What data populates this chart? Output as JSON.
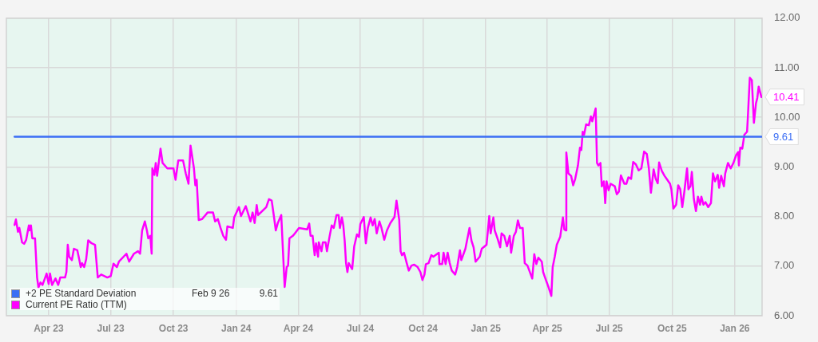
{
  "chart_data": {
    "type": "line",
    "xlim": [
      "2023-01-29",
      "2026-02-10"
    ],
    "xticks": [
      {
        "value": "2023-04-01",
        "label": "Apr 23"
      },
      {
        "value": "2023-07-01",
        "label": "Jul 23"
      },
      {
        "value": "2023-10-01",
        "label": "Oct 23"
      },
      {
        "value": "2024-01-01",
        "label": "Jan 24"
      },
      {
        "value": "2024-04-01",
        "label": "Apr 24"
      },
      {
        "value": "2024-07-01",
        "label": "Jul 24"
      },
      {
        "value": "2024-10-01",
        "label": "Oct 24"
      },
      {
        "value": "2025-01-01",
        "label": "Jan 25"
      },
      {
        "value": "2025-04-01",
        "label": "Apr 25"
      },
      {
        "value": "2025-07-01",
        "label": "Jul 25"
      },
      {
        "value": "2025-10-01",
        "label": "Oct 25"
      },
      {
        "value": "2026-01-01",
        "label": "Jan 26"
      }
    ],
    "ylim": [
      6,
      12
    ],
    "yticks": [
      {
        "value": 6,
        "label": "6.00"
      },
      {
        "value": 7,
        "label": "7.00"
      },
      {
        "value": 8,
        "label": "8.00"
      },
      {
        "value": 9,
        "label": "9.00"
      },
      {
        "value": 10,
        "label": "10.00"
      },
      {
        "value": 11,
        "label": "11.00"
      },
      {
        "value": 12,
        "label": "12.00"
      }
    ],
    "grid": true,
    "legend": "bottom left",
    "annotations": [
      "Feb 9 26",
      "9.61",
      {
        "text": "9.61",
        "x": "2026-02-09",
        "y": 9.61
      },
      {
        "text": "10.41",
        "x": "2026-02-09",
        "y": 10.41
      }
    ],
    "series": [
      {
        "name": "+2 PE Standard Deviation",
        "color": "#3b6ef5",
        "x": [
          "2023-02-10",
          "2026-02-09"
        ],
        "values": [
          9.61,
          9.61
        ]
      },
      {
        "name": "Current PE Ratio (TTM)",
        "color": "#ff00ff",
        "x": [
          "2023-02-10",
          "2023-02-12",
          "2023-02-15",
          "2023-02-17",
          "2023-02-21",
          "2023-02-24",
          "2023-02-27",
          "2023-03-03",
          "2023-03-04",
          "2023-03-06",
          "2023-03-08",
          "2023-03-12",
          "2023-03-15",
          "2023-03-17",
          "2023-03-20",
          "2023-03-23",
          "2023-03-29",
          "2023-04-01",
          "2023-04-03",
          "2023-04-06",
          "2023-04-11",
          "2023-04-15",
          "2023-04-18",
          "2023-04-25",
          "2023-04-27",
          "2023-04-29",
          "2023-05-01",
          "2023-05-05",
          "2023-05-08",
          "2023-05-13",
          "2023-05-16",
          "2023-05-18",
          "2023-05-20",
          "2023-05-23",
          "2023-05-26",
          "2023-05-29",
          "2023-06-03",
          "2023-06-08",
          "2023-06-12",
          "2023-06-17",
          "2023-06-26",
          "2023-07-01",
          "2023-07-05",
          "2023-07-10",
          "2023-07-13",
          "2023-07-24",
          "2023-07-28",
          "2023-08-04",
          "2023-08-10",
          "2023-08-13",
          "2023-08-16",
          "2023-08-20",
          "2023-08-23",
          "2023-08-25",
          "2023-08-28",
          "2023-08-30",
          "2023-08-31",
          "2023-09-03",
          "2023-09-05",
          "2023-09-07",
          "2023-09-12",
          "2023-09-15",
          "2023-09-22",
          "2023-10-01",
          "2023-10-04",
          "2023-10-08",
          "2023-10-15",
          "2023-10-19",
          "2023-10-23",
          "2023-10-26",
          "2023-10-31",
          "2023-11-02",
          "2023-11-04",
          "2023-11-07",
          "2023-11-12",
          "2023-11-20",
          "2023-11-28",
          "2023-12-01",
          "2023-12-05",
          "2023-12-09",
          "2023-12-13",
          "2023-12-17",
          "2023-12-19",
          "2023-12-27",
          "2023-12-29",
          "2024-01-05",
          "2024-01-08",
          "2024-01-15",
          "2024-01-22",
          "2024-01-25",
          "2024-01-28",
          "2024-01-31",
          "2024-02-02",
          "2024-02-14",
          "2024-02-18",
          "2024-02-22",
          "2024-02-25",
          "2024-02-28",
          "2024-03-02",
          "2024-03-07",
          "2024-03-12",
          "2024-03-15",
          "2024-03-17",
          "2024-03-19",
          "2024-03-24",
          "2024-03-27",
          "2024-04-02",
          "2024-04-14",
          "2024-04-17",
          "2024-04-19",
          "2024-04-22",
          "2024-04-25",
          "2024-04-27",
          "2024-04-30",
          "2024-05-01",
          "2024-05-05",
          "2024-05-07",
          "2024-05-11",
          "2024-05-13",
          "2024-05-17",
          "2024-05-20",
          "2024-05-23",
          "2024-05-27",
          "2024-05-30",
          "2024-06-01",
          "2024-06-04",
          "2024-06-06",
          "2024-06-08",
          "2024-06-10",
          "2024-06-12",
          "2024-06-14",
          "2024-06-19",
          "2024-06-22",
          "2024-06-26",
          "2024-06-29",
          "2024-07-01",
          "2024-07-06",
          "2024-07-09",
          "2024-07-12",
          "2024-07-16",
          "2024-07-19",
          "2024-07-22",
          "2024-07-25",
          "2024-07-29",
          "2024-08-01",
          "2024-08-05",
          "2024-08-09",
          "2024-08-14",
          "2024-08-20",
          "2024-08-23",
          "2024-08-27",
          "2024-08-29",
          "2024-08-31",
          "2024-09-03",
          "2024-09-07",
          "2024-09-10",
          "2024-09-14",
          "2024-09-18",
          "2024-09-23",
          "2024-09-27",
          "2024-09-30",
          "2024-10-03",
          "2024-10-05",
          "2024-10-09",
          "2024-10-13",
          "2024-10-16",
          "2024-10-24",
          "2024-10-25",
          "2024-10-29",
          "2024-10-31",
          "2024-11-03",
          "2024-11-06",
          "2024-11-09",
          "2024-11-12",
          "2024-11-17",
          "2024-11-20",
          "2024-11-24",
          "2024-11-26",
          "2024-12-02",
          "2024-12-08",
          "2024-12-11",
          "2024-12-14",
          "2024-12-17",
          "2024-12-23",
          "2024-12-26",
          "2025-01-02",
          "2025-01-06",
          "2025-01-08",
          "2025-01-12",
          "2025-01-14",
          "2025-01-18",
          "2025-01-22",
          "2025-01-24",
          "2025-01-28",
          "2025-02-01",
          "2025-02-05",
          "2025-02-07",
          "2025-02-11",
          "2025-02-14",
          "2025-02-17",
          "2025-02-20",
          "2025-02-24",
          "2025-02-27",
          "2025-03-03",
          "2025-03-10",
          "2025-03-13",
          "2025-03-16",
          "2025-03-19",
          "2025-03-24",
          "2025-03-26",
          "2025-03-30",
          "2025-04-03",
          "2025-04-07",
          "2025-04-09",
          "2025-04-12",
          "2025-04-15",
          "2025-04-20",
          "2025-04-24",
          "2025-04-26",
          "2025-04-28",
          "2025-04-29",
          "2025-05-02",
          "2025-05-06",
          "2025-05-09",
          "2025-05-12",
          "2025-05-16",
          "2025-05-19",
          "2025-05-21",
          "2025-05-23",
          "2025-05-25",
          "2025-05-28",
          "2025-06-01",
          "2025-06-04",
          "2025-06-06",
          "2025-06-08",
          "2025-06-11",
          "2025-06-13",
          "2025-06-15",
          "2025-06-18",
          "2025-06-20",
          "2025-06-23",
          "2025-06-25",
          "2025-06-27",
          "2025-06-30",
          "2025-07-03",
          "2025-07-09",
          "2025-07-12",
          "2025-07-15",
          "2025-07-18",
          "2025-07-23",
          "2025-07-26",
          "2025-07-29",
          "2025-08-02",
          "2025-08-05",
          "2025-08-09",
          "2025-08-13",
          "2025-08-17",
          "2025-08-21",
          "2025-08-25",
          "2025-08-28",
          "2025-08-31",
          "2025-09-04",
          "2025-09-07",
          "2025-09-10",
          "2025-09-12",
          "2025-09-16",
          "2025-09-20",
          "2025-09-24",
          "2025-09-28",
          "2025-09-30",
          "2025-10-03",
          "2025-10-07",
          "2025-10-10",
          "2025-10-13",
          "2025-10-16",
          "2025-10-19",
          "2025-10-23",
          "2025-10-25",
          "2025-10-28",
          "2025-10-30",
          "2025-11-02",
          "2025-11-05",
          "2025-11-08",
          "2025-11-11",
          "2025-11-13",
          "2025-11-16",
          "2025-11-19",
          "2025-11-23",
          "2025-11-27",
          "2025-11-30",
          "2025-12-03",
          "2025-12-07",
          "2025-12-09",
          "2025-12-12",
          "2025-12-16",
          "2025-12-18",
          "2025-12-22",
          "2025-12-26",
          "2025-12-30",
          "2026-01-03",
          "2026-01-06",
          "2026-01-07",
          "2026-01-09",
          "2026-01-12",
          "2026-01-15",
          "2026-01-19",
          "2026-01-20",
          "2026-01-23",
          "2026-01-26",
          "2026-01-29",
          "2026-02-01",
          "2026-02-03",
          "2026-02-05",
          "2026-02-09"
        ],
        "values": [
          7.83,
          7.94,
          7.69,
          7.77,
          7.48,
          7.45,
          7.53,
          7.82,
          7.72,
          7.82,
          7.56,
          7.56,
          6.77,
          6.57,
          6.67,
          6.62,
          6.85,
          6.64,
          6.85,
          6.62,
          6.75,
          6.62,
          6.77,
          6.77,
          6.88,
          7.43,
          7.19,
          7.12,
          7.35,
          7.32,
          7.12,
          6.98,
          7.06,
          6.98,
          7.14,
          7.52,
          7.46,
          7.43,
          6.77,
          6.83,
          6.77,
          6.8,
          7.05,
          6.98,
          7.09,
          7.25,
          7.09,
          7.25,
          7.3,
          7.25,
          7.72,
          7.9,
          7.72,
          7.56,
          7.61,
          7.25,
          8.97,
          8.84,
          9.08,
          8.82,
          9.37,
          9.08,
          8.97,
          8.97,
          8.74,
          9.13,
          9.13,
          8.87,
          8.66,
          9.43,
          8.97,
          8.63,
          8.74,
          7.93,
          7.95,
          8.08,
          8.08,
          7.9,
          7.95,
          7.77,
          7.61,
          7.53,
          7.8,
          7.77,
          7.98,
          8.19,
          8.01,
          8.21,
          7.9,
          8.08,
          7.87,
          8.23,
          8.03,
          8.19,
          8.35,
          8.32,
          8.03,
          7.72,
          7.87,
          8.03,
          6.58,
          6.98,
          7.01,
          7.56,
          7.61,
          7.66,
          7.77,
          7.74,
          7.86,
          7.61,
          7.61,
          7.22,
          7.46,
          7.19,
          7.48,
          7.3,
          7.48,
          7.48,
          7.3,
          7.61,
          7.82,
          7.77,
          8.03,
          8.03,
          7.77,
          7.98,
          7.82,
          7.51,
          7.06,
          6.88,
          7.06,
          6.94,
          7.4,
          7.64,
          7.59,
          7.85,
          7.99,
          7.46,
          7.77,
          7.98,
          7.82,
          7.95,
          7.66,
          7.9,
          7.77,
          7.53,
          7.72,
          7.87,
          7.99,
          8.32,
          7.93,
          7.3,
          7.22,
          7.27,
          7.06,
          6.91,
          7.01,
          7.03,
          6.98,
          6.88,
          6.72,
          6.83,
          7.04,
          7.06,
          7.22,
          7.19,
          7.27,
          7.04,
          7.04,
          7.27,
          7.04,
          7.27,
          7.06,
          6.91,
          6.83,
          6.98,
          7.32,
          7.12,
          7.35,
          7.77,
          7.51,
          7.38,
          7.09,
          7.19,
          7.35,
          7.43,
          8.01,
          7.66,
          7.98,
          7.72,
          7.56,
          7.38,
          7.66,
          7.61,
          7.4,
          7.61,
          7.27,
          7.61,
          7.69,
          7.92,
          7.77,
          7.77,
          7.06,
          7.01,
          6.75,
          7.24,
          7.04,
          7.17,
          7.09,
          6.88,
          6.72,
          6.57,
          6.4,
          6.98,
          7.19,
          7.43,
          7.59,
          7.98,
          7.74,
          7.72,
          9.29,
          8.87,
          8.82,
          8.63,
          8.76,
          9.03,
          9.39,
          9.34,
          9.71,
          9.65,
          9.86,
          9.84,
          10.02,
          9.92,
          10.02,
          10.18,
          9.08,
          9.03,
          9.08,
          8.61,
          8.71,
          8.27,
          8.71,
          8.53,
          8.66,
          8.61,
          8.45,
          8.5,
          8.83,
          8.66,
          8.66,
          8.79,
          8.76,
          9.1,
          9.05,
          8.93,
          8.97,
          9.31,
          9.26,
          8.97,
          8.48,
          8.95,
          8.76,
          8.67,
          9.09,
          8.92,
          8.82,
          8.74,
          8.66,
          8.55,
          8.16,
          8.24,
          8.63,
          8.55,
          8.19,
          8.5,
          8.97,
          8.55,
          8.61,
          8.9,
          8.35,
          8.11,
          8.4,
          8.24,
          8.4,
          8.24,
          8.29,
          8.19,
          8.27,
          8.87,
          8.71,
          8.84,
          8.58,
          8.82,
          8.61,
          8.87,
          9.08,
          8.97,
          9.08,
          9.24,
          9.3,
          9.03,
          9.39,
          9.37,
          9.65,
          9.71,
          9.97,
          10.8,
          10.75,
          9.89,
          10.28,
          10.39,
          10.62,
          10.41
        ]
      }
    ]
  }
}
